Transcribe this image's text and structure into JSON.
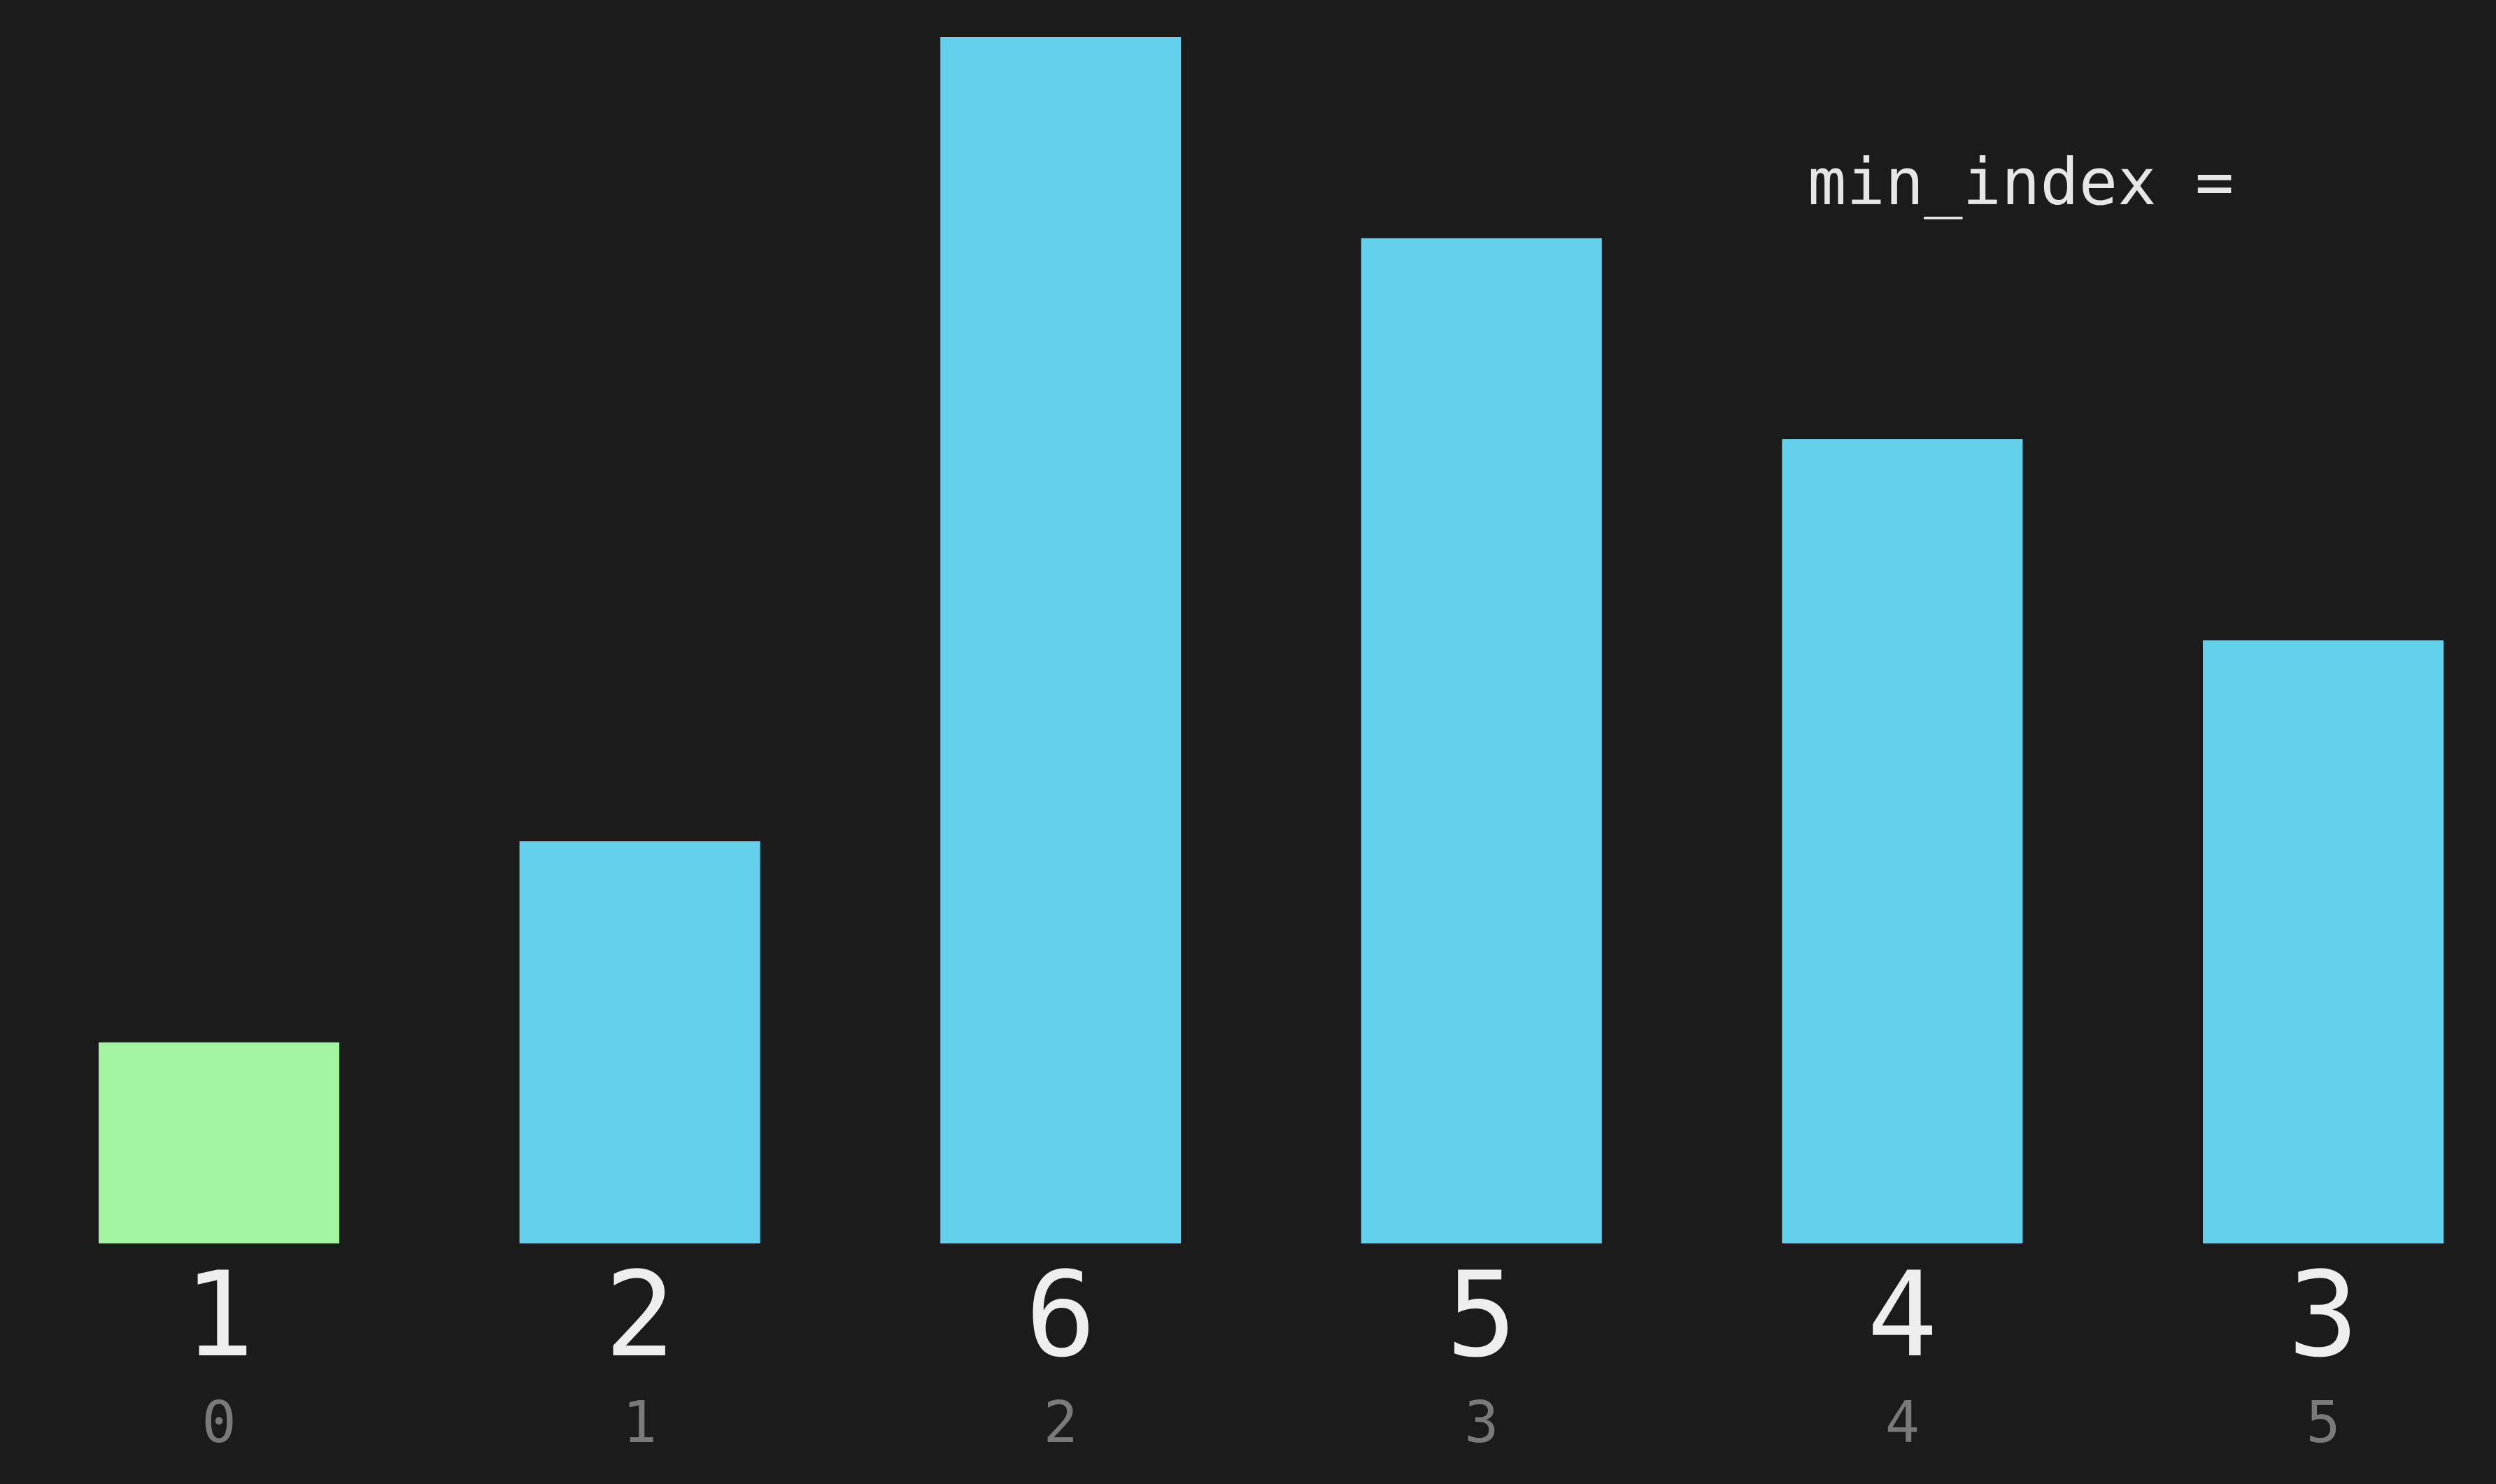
{
  "chart_data": {
    "type": "bar",
    "title": "",
    "xlabel": "",
    "ylabel": "",
    "categories": [
      "0",
      "1",
      "2",
      "3",
      "4",
      "5"
    ],
    "values": [
      1,
      2,
      6,
      5,
      4,
      3
    ],
    "index_labels": [
      "0",
      "1",
      "2",
      "3",
      "4",
      "5"
    ],
    "value_labels": [
      "1",
      "2",
      "6",
      "5",
      "4",
      "3"
    ],
    "highlighted_index": 0,
    "ylim": [
      0,
      6
    ],
    "grid": false,
    "colors": {
      "bar": "#64d1ec",
      "highlight": "#a3f4a0",
      "background": "#1b1b1b",
      "value_text": "#eeeeee",
      "index_text": "#7a7a7a"
    }
  },
  "annotation": {
    "min_index_label": "min_index ="
  }
}
